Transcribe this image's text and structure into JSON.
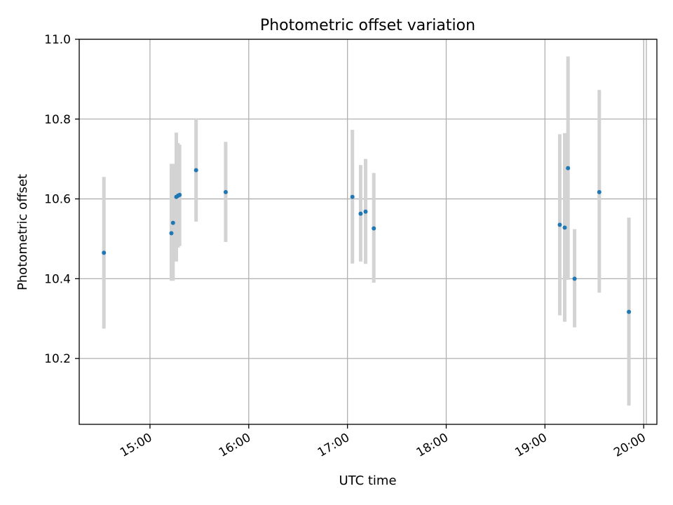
{
  "chart_data": {
    "type": "scatter",
    "title": "Photometric offset variation",
    "xlabel": "UTC time",
    "ylabel": "Photometric offset",
    "x_axis_kind": "time",
    "xlim": [
      "14:17",
      "20:08"
    ],
    "ylim": [
      10.035,
      11.0
    ],
    "xticks": [
      "15:00",
      "16:00",
      "17:00",
      "18:00",
      "19:00",
      "20:00"
    ],
    "yticks": [
      "10.2",
      "10.4",
      "10.6",
      "10.8",
      "11.0"
    ],
    "grid": true,
    "colors": {
      "point": "#1f77b4",
      "errorbar": "#d3d3d3",
      "grid": "#b0b0b0"
    },
    "points": [
      {
        "x": "14:32",
        "y": 10.465,
        "ylow": 10.275,
        "yhigh": 10.655
      },
      {
        "x": "15:13",
        "y": 10.514,
        "ylow": 10.395,
        "yhigh": 10.688
      },
      {
        "x": "15:14",
        "y": 10.54,
        "ylow": 10.395,
        "yhigh": 10.688
      },
      {
        "x": "15:16",
        "y": 10.605,
        "ylow": 10.443,
        "yhigh": 10.766
      },
      {
        "x": "15:17",
        "y": 10.608,
        "ylow": 10.478,
        "yhigh": 10.74
      },
      {
        "x": "15:18",
        "y": 10.61,
        "ylow": 10.482,
        "yhigh": 10.736
      },
      {
        "x": "15:28",
        "y": 10.672,
        "ylow": 10.543,
        "yhigh": 10.802
      },
      {
        "x": "15:46",
        "y": 10.617,
        "ylow": 10.492,
        "yhigh": 10.743
      },
      {
        "x": "17:03",
        "y": 10.605,
        "ylow": 10.438,
        "yhigh": 10.773
      },
      {
        "x": "17:08",
        "y": 10.563,
        "ylow": 10.443,
        "yhigh": 10.685
      },
      {
        "x": "17:11",
        "y": 10.568,
        "ylow": 10.437,
        "yhigh": 10.7
      },
      {
        "x": "17:16",
        "y": 10.526,
        "ylow": 10.39,
        "yhigh": 10.665
      },
      {
        "x": "19:09",
        "y": 10.535,
        "ylow": 10.308,
        "yhigh": 10.762
      },
      {
        "x": "19:12",
        "y": 10.528,
        "ylow": 10.292,
        "yhigh": 10.765
      },
      {
        "x": "19:14",
        "y": 10.677,
        "ylow": 10.397,
        "yhigh": 10.957
      },
      {
        "x": "19:18",
        "y": 10.4,
        "ylow": 10.278,
        "yhigh": 10.524
      },
      {
        "x": "19:33",
        "y": 10.617,
        "ylow": 10.365,
        "yhigh": 10.873
      },
      {
        "x": "19:51",
        "y": 10.317,
        "ylow": 10.082,
        "yhigh": 10.553
      }
    ]
  }
}
